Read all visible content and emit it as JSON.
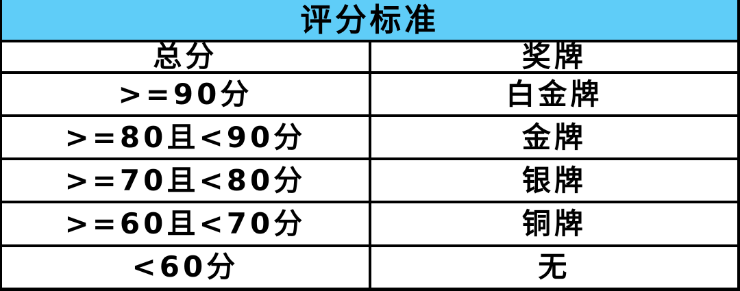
{
  "table": {
    "title": "评分标准",
    "columns": [
      {
        "label": "总分"
      },
      {
        "label": "奖牌"
      }
    ],
    "rows": [
      {
        "score": ">=90分",
        "medal": "白金牌"
      },
      {
        "score": ">=80且<90分",
        "medal": "金牌"
      },
      {
        "score": ">=70且<80分",
        "medal": "银牌"
      },
      {
        "score": ">=60且<70分",
        "medal": "铜牌"
      },
      {
        "score": "<60分",
        "medal": "无"
      }
    ],
    "colors": {
      "header_bg": "#5FCDF8",
      "border": "#000000",
      "text": "#000000",
      "row_bg": "#FFFFFF"
    }
  },
  "chart_data": {
    "type": "table",
    "title": "评分标准",
    "columns": [
      "总分",
      "奖牌"
    ],
    "cells": [
      [
        ">=90分",
        "白金牌"
      ],
      [
        ">=80且<90分",
        "金牌"
      ],
      [
        ">=70且<80分",
        "银牌"
      ],
      [
        ">=60且<70分",
        "铜牌"
      ],
      [
        "<60分",
        "无"
      ]
    ],
    "layout": {
      "title_bg": "#5FCDF8",
      "grid": "on",
      "text_weight": "bold"
    }
  }
}
